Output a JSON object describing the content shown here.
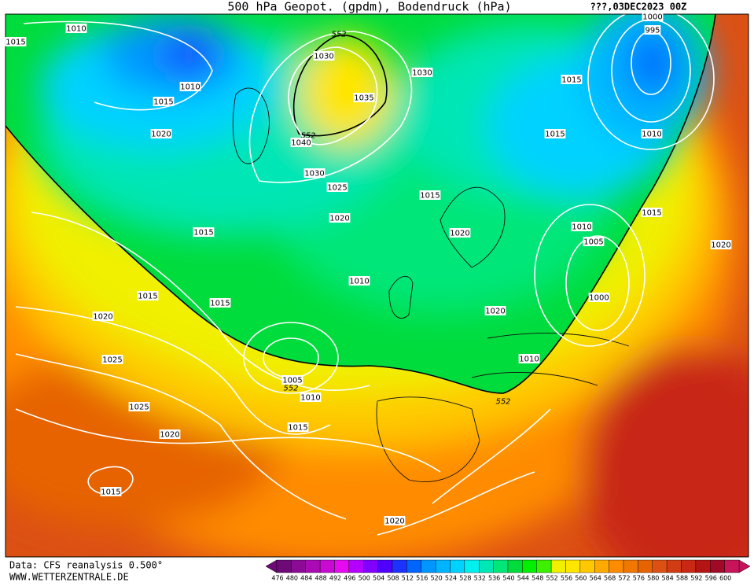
{
  "header": {
    "title": "500 hPa Geopot. (gpdm), Bodendruck (hPa)",
    "timestamp": "???,03DEC2023 00Z"
  },
  "footer": {
    "source": "Data: CFS reanalysis 0.500°",
    "website": "WWW.WETTERZENTRALE.DE"
  },
  "isobar_labels": [
    1010,
    1015,
    552,
    1030,
    1030,
    1015,
    995,
    1000,
    1010,
    1015,
    1035,
    1020,
    552,
    1040,
    1015,
    1010,
    1030,
    1025,
    1015,
    1020,
    1015,
    1020,
    1010,
    1005,
    1015,
    1020,
    1010,
    1015,
    1015,
    1000,
    1020,
    1020,
    1025,
    1010,
    1005,
    552,
    1010,
    552,
    1025,
    1015,
    1020,
    1015,
    1020
  ],
  "colorbar": {
    "values": [
      476,
      480,
      484,
      488,
      492,
      496,
      500,
      504,
      508,
      512,
      516,
      520,
      524,
      528,
      532,
      536,
      540,
      544,
      548,
      552,
      556,
      560,
      564,
      568,
      572,
      576,
      580,
      584,
      588,
      592,
      596,
      600
    ],
    "colors": [
      "#6e0a78",
      "#8c0a96",
      "#aa0ab4",
      "#c80ad2",
      "#e60af0",
      "#b400ff",
      "#8200ff",
      "#5000ff",
      "#1e32ff",
      "#0064ff",
      "#0096ff",
      "#00b4ff",
      "#00d2ff",
      "#00f0f0",
      "#00e6b4",
      "#00e678",
      "#00dc3c",
      "#00f000",
      "#3cf000",
      "#f0f000",
      "#ffe600",
      "#ffc800",
      "#ffaa00",
      "#ff8c00",
      "#f07800",
      "#e66400",
      "#dc5014",
      "#d23c14",
      "#c82814",
      "#b41414",
      "#a00a28",
      "#c8145a"
    ]
  }
}
